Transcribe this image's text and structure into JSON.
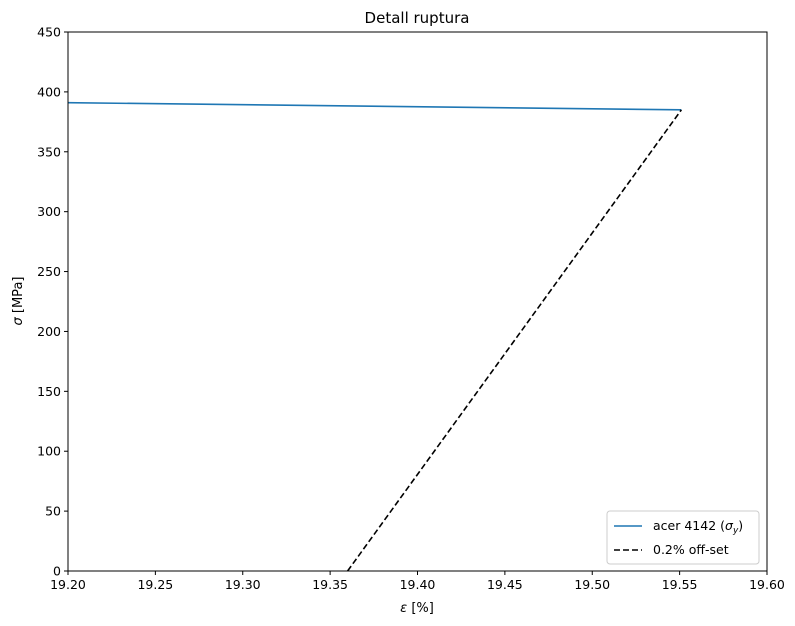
{
  "chart_data": {
    "type": "line",
    "title": "Detall ruptura",
    "xlabel_symbol": "ε",
    "xlabel_unit": " [%]",
    "ylabel_symbol": "σ",
    "ylabel_unit": " [MPa]",
    "xlim": [
      19.2,
      19.6
    ],
    "ylim": [
      0,
      450
    ],
    "xticks": [
      19.2,
      19.25,
      19.3,
      19.35,
      19.4,
      19.45,
      19.5,
      19.55,
      19.6
    ],
    "xtick_labels": [
      "19.20",
      "19.25",
      "19.30",
      "19.35",
      "19.40",
      "19.45",
      "19.50",
      "19.55",
      "19.60"
    ],
    "yticks": [
      0,
      50,
      100,
      150,
      200,
      250,
      300,
      350,
      400,
      450
    ],
    "ytick_labels": [
      "0",
      "50",
      "100",
      "150",
      "200",
      "250",
      "300",
      "350",
      "400",
      "450"
    ],
    "grid": false,
    "legend_position": "lower-right",
    "series": [
      {
        "name": "acer 4142 (σy)",
        "legend_main": "acer 4142 (",
        "legend_sym": "σ",
        "legend_sub": "y",
        "legend_close": ")",
        "color": "#1f77b4",
        "style": "solid",
        "x": [
          19.2,
          19.551
        ],
        "y": [
          391,
          385
        ]
      },
      {
        "name": "0.2% off-set",
        "legend_main": "0.2% off-set",
        "color": "#000000",
        "style": "dashed",
        "x": [
          19.36,
          19.551
        ],
        "y": [
          0,
          385
        ]
      }
    ]
  }
}
